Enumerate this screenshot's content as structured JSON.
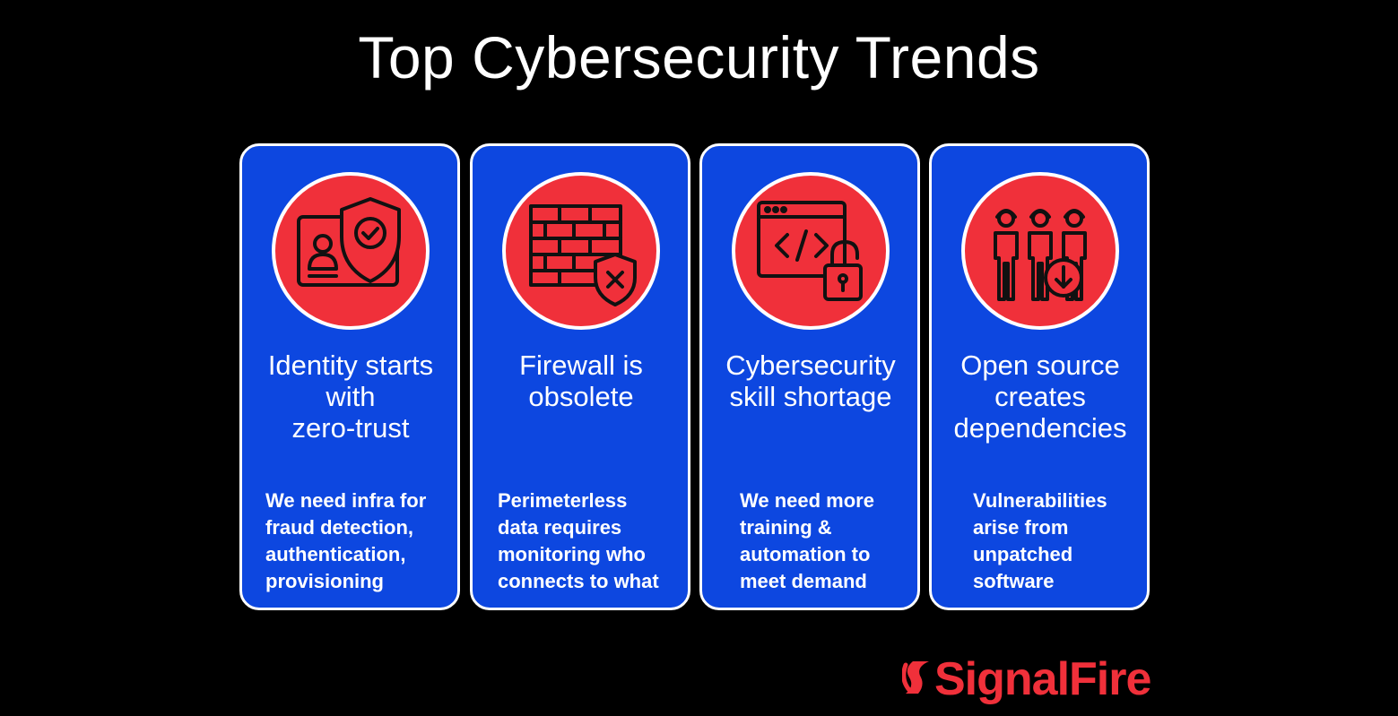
{
  "title": "Top Cybersecurity Trends",
  "colors": {
    "background": "#000000",
    "card": "#0d47e0",
    "accent": "#f0303a",
    "text": "#ffffff"
  },
  "cards": [
    {
      "icon": "id-card-shield-icon",
      "title": "Identity starts\nwith\nzero-trust",
      "description": "We need infra for\nfraud detection,\nauthentication,\nprovisioning"
    },
    {
      "icon": "firewall-shield-icon",
      "title": "Firewall is\nobsolete",
      "description": "Perimeterless\ndata requires\nmonitoring who\nconnects to what"
    },
    {
      "icon": "code-window-unlock-icon",
      "title": "Cybersecurity\nskill shortage",
      "description": "We need more\ntraining &\nautomation to\nmeet demand"
    },
    {
      "icon": "workers-download-icon",
      "title": "Open source\ncreates\ndependencies",
      "description": "Vulnerabilities\narise from\nunpatched\nsoftware"
    }
  ],
  "logo": {
    "text": "SignalFire",
    "icon": "signalfire-logo-icon"
  }
}
